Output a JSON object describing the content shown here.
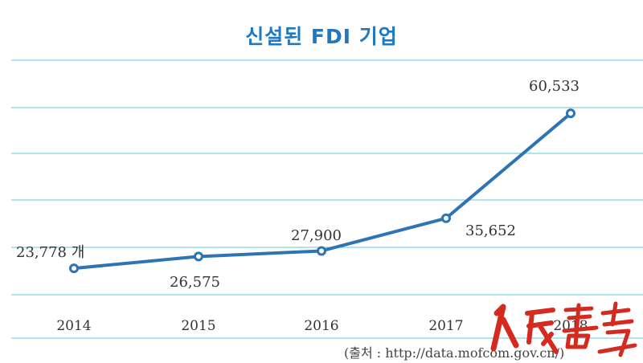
{
  "chart_data": {
    "type": "line",
    "title": "신설된 FDI 기업",
    "categories": [
      "2014",
      "2015",
      "2016",
      "2017",
      "2018"
    ],
    "series": [
      {
        "values": [
          23778,
          26575,
          27900,
          35652,
          60533
        ],
        "color": "#2e74b5"
      }
    ],
    "data_labels": [
      "23,778 개",
      "26,575",
      "27,900",
      "35,652",
      "60,533"
    ],
    "grid": true,
    "grid_color": "#7fd2e3",
    "ylim": [
      20000,
      70000
    ]
  },
  "source": "(출처 : http://data.mofcom.gov.cn/)",
  "watermark": "人民画报"
}
